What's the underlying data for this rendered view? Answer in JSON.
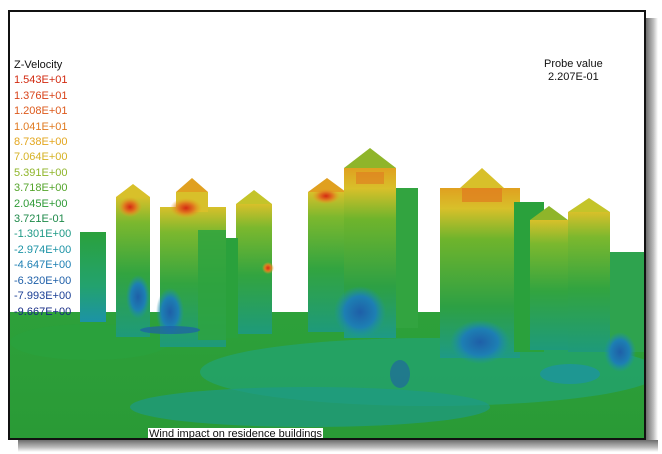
{
  "legend": {
    "title": "Z-Velocity",
    "entries": [
      {
        "label": "1.543E+01",
        "color": "#d22a10"
      },
      {
        "label": "1.376E+01",
        "color": "#d8431a"
      },
      {
        "label": "1.208E+01",
        "color": "#dd5a1c"
      },
      {
        "label": "1.041E+01",
        "color": "#e07a20"
      },
      {
        "label": "8.738E+00",
        "color": "#e3a61e"
      },
      {
        "label": "7.064E+00",
        "color": "#d6b224"
      },
      {
        "label": "5.391E+00",
        "color": "#8fb52a"
      },
      {
        "label": "3.718E+00",
        "color": "#55a52c"
      },
      {
        "label": "2.045E+00",
        "color": "#2e9a36"
      },
      {
        "label": "3.721E-01",
        "color": "#1f8a4a"
      },
      {
        "label": "-1.301E+00",
        "color": "#1e9a86"
      },
      {
        "label": "-2.974E+00",
        "color": "#1c93a6"
      },
      {
        "label": "-4.647E+00",
        "color": "#1d7fb3"
      },
      {
        "label": "-6.320E+00",
        "color": "#1e5fa8"
      },
      {
        "label": "-7.993E+00",
        "color": "#1b3f95"
      },
      {
        "label": "-9.667E+00",
        "color": "#162b84"
      }
    ]
  },
  "probe": {
    "label": "Probe value",
    "value": "2.207E-01"
  },
  "caption": "Wind impact on residence buildings"
}
